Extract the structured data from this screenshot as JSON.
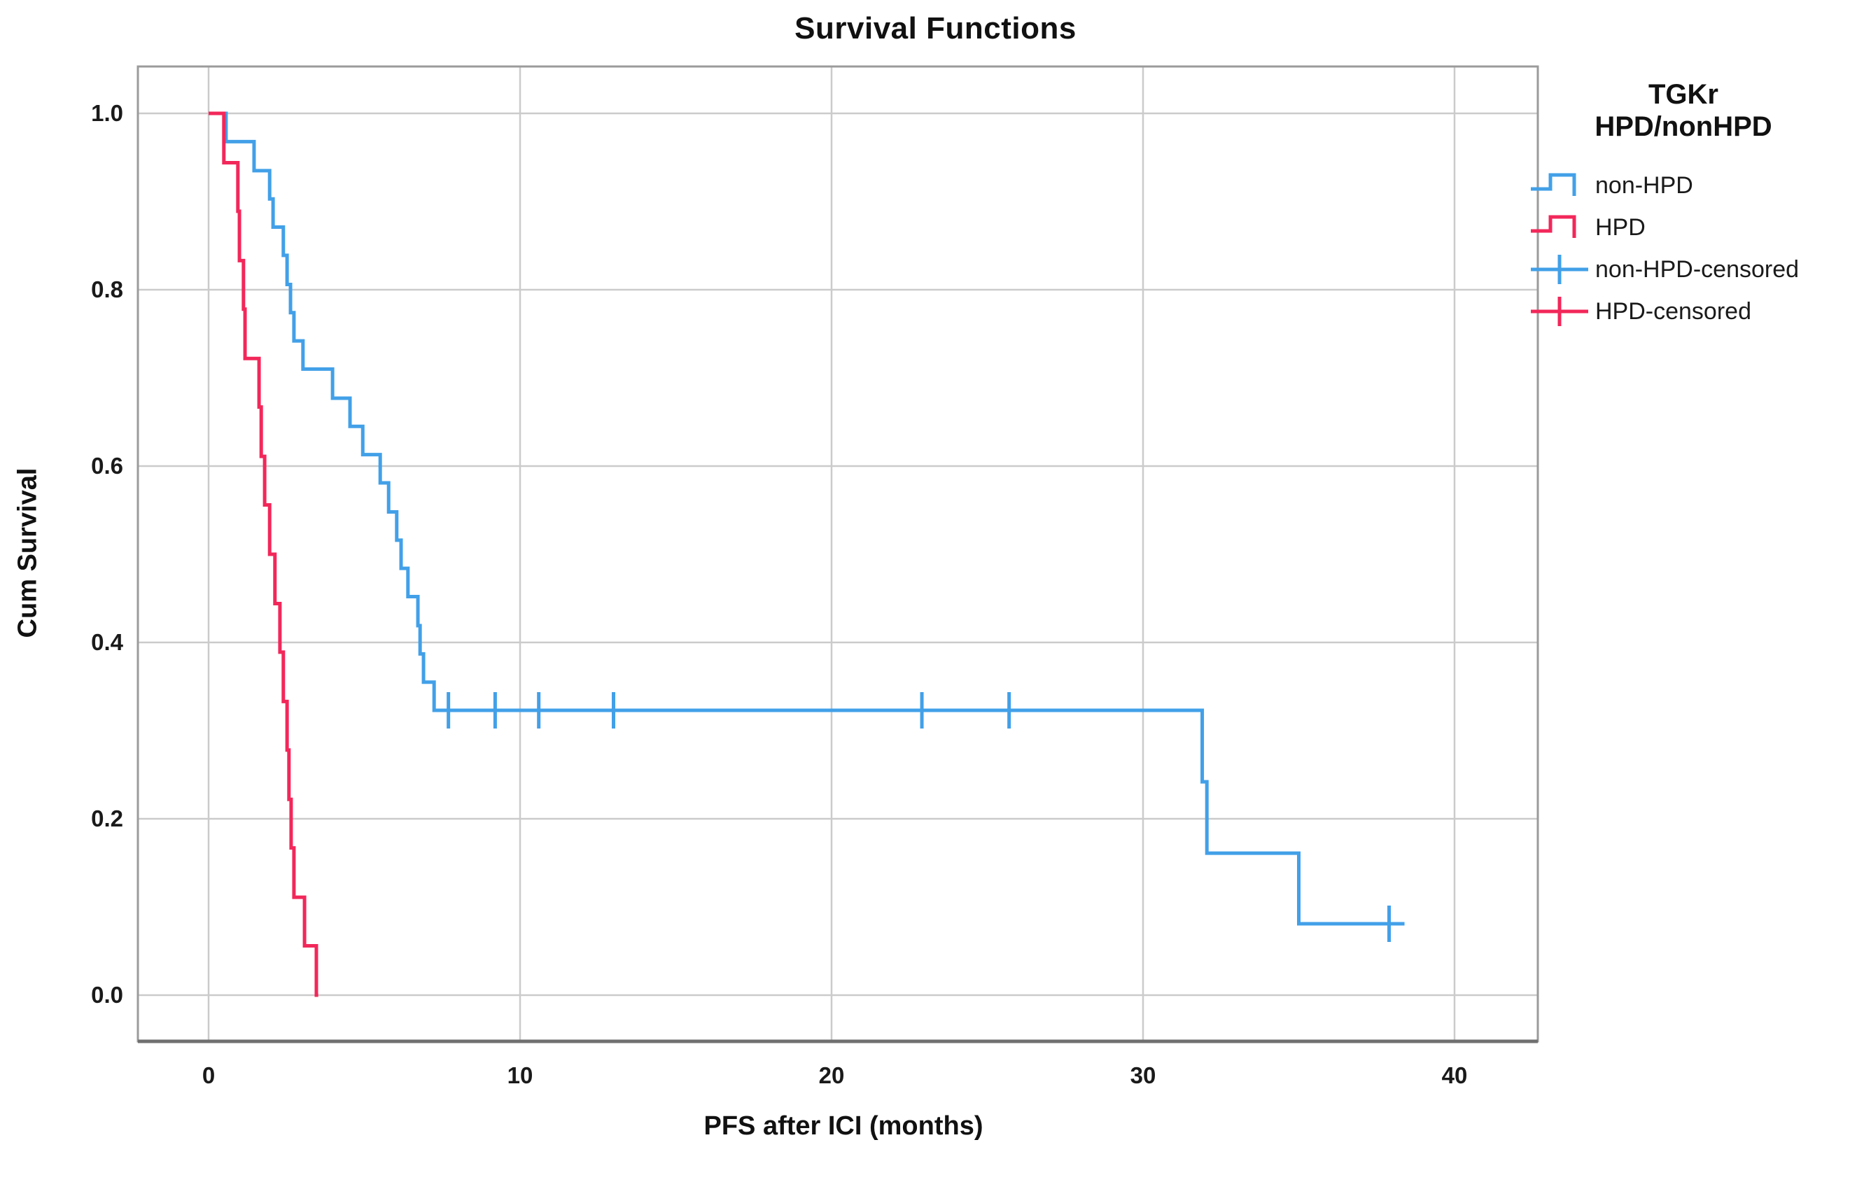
{
  "title": "Survival Functions",
  "axes": {
    "x_label": "PFS after ICI (months)",
    "y_label": "Cum Survival",
    "x_tick_labels": [
      "0",
      "10",
      "20",
      "30",
      "40"
    ],
    "y_tick_labels": [
      "0.0",
      "0.2",
      "0.4",
      "0.6",
      "0.8",
      "1.0"
    ]
  },
  "legend": {
    "title_lines": [
      "TGKr",
      "HPD/nonHPD"
    ],
    "entries": [
      {
        "label": "non-HPD",
        "color": "#42A0E8",
        "symbol": "step-line"
      },
      {
        "label": "HPD",
        "color": "#F2275A",
        "symbol": "step-line"
      },
      {
        "label": "non-HPD-censored",
        "color": "#42A0E8",
        "symbol": "plus-line"
      },
      {
        "label": "HPD-censored",
        "color": "#F2275A",
        "symbol": "plus-line"
      }
    ]
  },
  "chart_data": {
    "type": "line",
    "subtype": "kaplan-meier-step",
    "title": "Survival Functions",
    "xlabel": "PFS after ICI (months)",
    "ylabel": "Cum Survival",
    "xlim": [
      0,
      40
    ],
    "ylim": [
      0.0,
      1.0
    ],
    "x_ticks": [
      0,
      10,
      20,
      30,
      40
    ],
    "y_ticks": [
      0.0,
      0.2,
      0.4,
      0.6,
      0.8,
      1.0
    ],
    "grid": true,
    "legend_position": "right",
    "series": [
      {
        "name": "non-HPD",
        "color": "#42A0E8",
        "end_time": 38.2,
        "steps": [
          [
            0,
            1.0
          ],
          [
            0.56,
            0.968
          ],
          [
            1.46,
            0.935
          ],
          [
            1.96,
            0.903
          ],
          [
            2.07,
            0.871
          ],
          [
            2.4,
            0.839
          ],
          [
            2.52,
            0.806
          ],
          [
            2.63,
            0.774
          ],
          [
            2.74,
            0.742
          ],
          [
            3.03,
            0.71
          ],
          [
            3.98,
            0.677
          ],
          [
            4.54,
            0.645
          ],
          [
            4.95,
            0.613
          ],
          [
            5.51,
            0.581
          ],
          [
            5.78,
            0.548
          ],
          [
            6.04,
            0.516
          ],
          [
            6.18,
            0.484
          ],
          [
            6.4,
            0.452
          ],
          [
            6.72,
            0.419
          ],
          [
            6.79,
            0.387
          ],
          [
            6.9,
            0.355
          ],
          [
            7.24,
            0.323
          ],
          [
            31.9,
            0.242
          ],
          [
            32.05,
            0.161
          ],
          [
            35.0,
            0.081
          ]
        ],
        "censored": [
          [
            7.7,
            0.323
          ],
          [
            9.2,
            0.323
          ],
          [
            10.6,
            0.323
          ],
          [
            13.0,
            0.323
          ],
          [
            22.9,
            0.323
          ],
          [
            25.7,
            0.323
          ],
          [
            37.9,
            0.081
          ]
        ]
      },
      {
        "name": "HPD",
        "color": "#F2275A",
        "end_time": 3.52,
        "steps": [
          [
            0,
            1.0
          ],
          [
            0.49,
            0.944
          ],
          [
            0.94,
            0.889
          ],
          [
            0.99,
            0.833
          ],
          [
            1.12,
            0.778
          ],
          [
            1.17,
            0.722
          ],
          [
            1.62,
            0.667
          ],
          [
            1.69,
            0.611
          ],
          [
            1.8,
            0.556
          ],
          [
            1.96,
            0.5
          ],
          [
            2.13,
            0.444
          ],
          [
            2.29,
            0.389
          ],
          [
            2.4,
            0.333
          ],
          [
            2.52,
            0.278
          ],
          [
            2.58,
            0.222
          ],
          [
            2.65,
            0.167
          ],
          [
            2.74,
            0.111
          ],
          [
            3.08,
            0.056
          ],
          [
            3.46,
            0.0
          ]
        ],
        "censored": []
      }
    ],
    "colors": {
      "grid": "#cbcbcb",
      "frame": "#9b9b9b",
      "axis_bottom": "#707070",
      "tick_text": "#1a1a1a"
    }
  }
}
